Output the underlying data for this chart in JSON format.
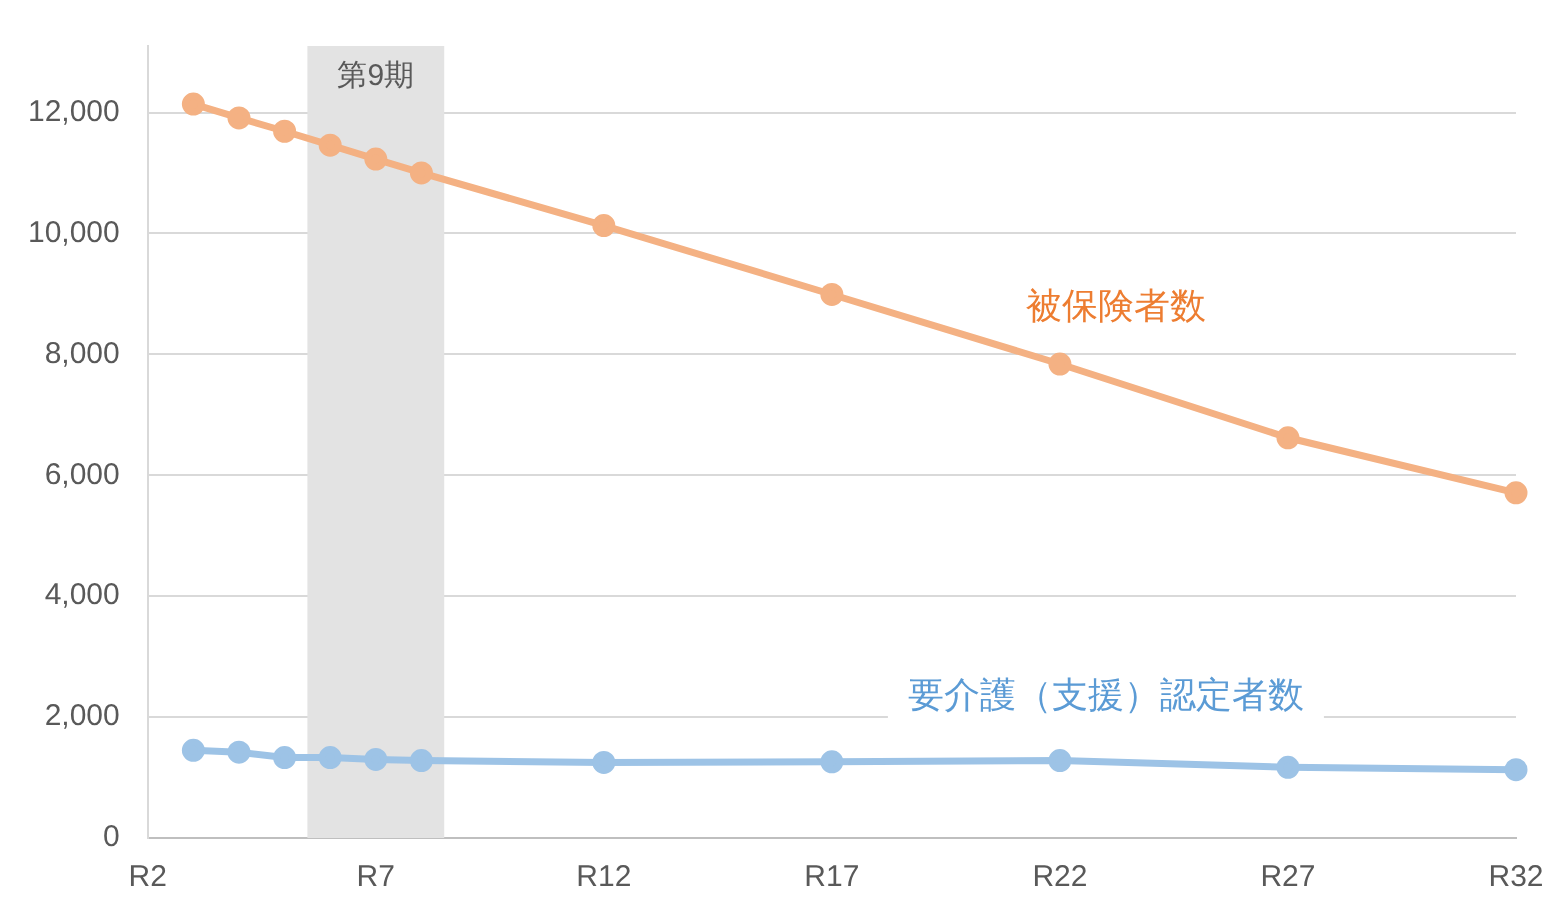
{
  "chart_data": {
    "type": "line",
    "categories": [
      "R2",
      null,
      null,
      null,
      null,
      "R7",
      null,
      null,
      null,
      null,
      "R12",
      null,
      null,
      null,
      null,
      "R17",
      null,
      null,
      null,
      null,
      "R22",
      null,
      null,
      null,
      null,
      "R27",
      null,
      null,
      null,
      null,
      "R32"
    ],
    "series": [
      {
        "name": "被保険者数",
        "color": "#f4b183",
        "values": [
          null,
          12140,
          11910,
          11690,
          11460,
          11230,
          11000,
          null,
          null,
          null,
          10130,
          null,
          null,
          null,
          null,
          8990,
          null,
          null,
          null,
          null,
          7840,
          null,
          null,
          null,
          null,
          6620,
          null,
          null,
          null,
          null,
          5710
        ]
      },
      {
        "name": "要介護（支援）認定者数",
        "color": "#9dc3e6",
        "values": [
          null,
          1450,
          1420,
          1330,
          1330,
          1300,
          1280,
          null,
          null,
          null,
          1250,
          null,
          null,
          null,
          null,
          1260,
          null,
          null,
          null,
          null,
          1280,
          null,
          null,
          null,
          null,
          1170,
          null,
          null,
          null,
          null,
          1130
        ]
      }
    ],
    "ylim": [
      0,
      13100
    ],
    "yticks": [
      {
        "value": 0,
        "label": "0"
      },
      {
        "value": 2000,
        "label": "2,000"
      },
      {
        "value": 4000,
        "label": "4,000"
      },
      {
        "value": 6000,
        "label": "6,000"
      },
      {
        "value": 8000,
        "label": "8,000"
      },
      {
        "value": 10000,
        "label": "10,000"
      },
      {
        "value": 12000,
        "label": "12,000"
      }
    ],
    "annotations": [
      "第9期"
    ],
    "grid": "y",
    "legend": false,
    "marker": "circle",
    "line_style": "solid"
  }
}
